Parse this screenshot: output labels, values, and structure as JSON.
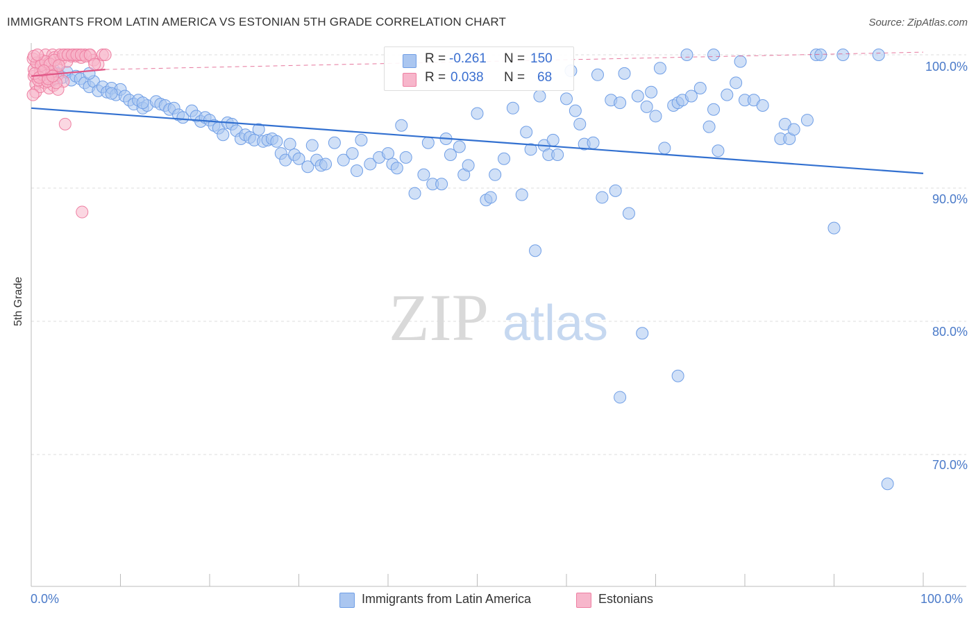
{
  "header": {
    "title": "IMMIGRANTS FROM LATIN AMERICA VS ESTONIAN 5TH GRADE CORRELATION CHART",
    "source": "Source: ZipAtlas.com"
  },
  "watermark": {
    "zip": "ZIP",
    "atlas": "atlas"
  },
  "stats": {
    "rows": [
      {
        "r_label": "R = ",
        "r_value": "-0.261",
        "n_label": "N = ",
        "n_value": "150",
        "color": "#aac6f0"
      },
      {
        "r_label": "R = ",
        "r_value": "0.038",
        "n_label": "N = ",
        "n_value": "68",
        "color": "#f7b6cb"
      }
    ]
  },
  "legend": {
    "items": [
      {
        "label": "Immigrants from Latin America",
        "color": "#aac6f0"
      },
      {
        "label": "Estonians",
        "color": "#f7b6cb"
      }
    ]
  },
  "chart_data": {
    "type": "scatter",
    "title": "IMMIGRANTS FROM LATIN AMERICA VS ESTONIAN 5TH GRADE CORRELATION CHART",
    "xlabel": "",
    "ylabel": "5th Grade",
    "xlim": [
      0,
      100
    ],
    "ylim": [
      60,
      100.5
    ],
    "x_tick_labels": [
      "0.0%",
      "100.0%"
    ],
    "y_ticks": [
      {
        "value": 100,
        "label": "100.0%"
      },
      {
        "value": 90,
        "label": "90.0%"
      },
      {
        "value": 80,
        "label": "80.0%"
      },
      {
        "value": 70,
        "label": "70.0%"
      }
    ],
    "grid": true,
    "legend_position": "bottom",
    "series": [
      {
        "name": "Immigrants from Latin America",
        "color": "#6f9ee6",
        "fill": "#aac6f0",
        "trend": {
          "x": [
            0,
            100
          ],
          "y": [
            96.0,
            91.1
          ],
          "color": "#3270d0"
        },
        "points": [
          [
            1.5,
            98.5
          ],
          [
            2.5,
            98.9
          ],
          [
            3,
            98.6
          ],
          [
            3.5,
            98.3
          ],
          [
            4,
            98.7
          ],
          [
            4.5,
            98.1
          ],
          [
            5,
            98.4
          ],
          [
            5.5,
            98.2
          ],
          [
            6,
            97.9
          ],
          [
            6.5,
            97.6
          ],
          [
            7,
            98.0
          ],
          [
            7.5,
            97.3
          ],
          [
            8,
            97.6
          ],
          [
            8.5,
            97.2
          ],
          [
            9,
            97.5
          ],
          [
            9.5,
            97.0
          ],
          [
            10,
            97.4
          ],
          [
            10.5,
            96.9
          ],
          [
            11,
            96.6
          ],
          [
            11.5,
            96.3
          ],
          [
            12,
            96.6
          ],
          [
            12.5,
            96.0
          ],
          [
            13,
            96.2
          ],
          [
            14,
            96.5
          ],
          [
            14.5,
            96.3
          ],
          [
            15,
            96.2
          ],
          [
            15.5,
            95.9
          ],
          [
            16,
            96.0
          ],
          [
            16.5,
            95.5
          ],
          [
            17,
            95.3
          ],
          [
            18,
            95.8
          ],
          [
            18.5,
            95.4
          ],
          [
            19,
            95.0
          ],
          [
            19.5,
            95.3
          ],
          [
            20,
            95.1
          ],
          [
            20.5,
            94.7
          ],
          [
            21,
            94.5
          ],
          [
            21.5,
            94.0
          ],
          [
            22,
            94.9
          ],
          [
            22.5,
            94.8
          ],
          [
            23,
            94.3
          ],
          [
            23.5,
            93.7
          ],
          [
            24,
            94.0
          ],
          [
            24.5,
            93.8
          ],
          [
            25,
            93.6
          ],
          [
            25.5,
            94.4
          ],
          [
            26,
            93.5
          ],
          [
            26.5,
            93.6
          ],
          [
            27,
            93.7
          ],
          [
            27.5,
            93.5
          ],
          [
            28,
            92.6
          ],
          [
            28.5,
            92.1
          ],
          [
            29,
            93.3
          ],
          [
            29.5,
            92.5
          ],
          [
            30,
            92.2
          ],
          [
            31,
            91.6
          ],
          [
            31.5,
            93.2
          ],
          [
            32,
            92.1
          ],
          [
            32.5,
            91.7
          ],
          [
            33,
            91.8
          ],
          [
            34,
            93.4
          ],
          [
            35,
            92.1
          ],
          [
            36,
            92.6
          ],
          [
            36.5,
            91.3
          ],
          [
            37,
            93.6
          ],
          [
            38,
            91.8
          ],
          [
            39,
            92.3
          ],
          [
            40,
            92.6
          ],
          [
            40.5,
            91.8
          ],
          [
            41,
            91.5
          ],
          [
            41.5,
            94.7
          ],
          [
            42,
            92.3
          ],
          [
            43,
            89.6
          ],
          [
            44,
            91.0
          ],
          [
            44.5,
            93.4
          ],
          [
            45,
            90.3
          ],
          [
            46,
            90.3
          ],
          [
            46.5,
            93.7
          ],
          [
            47,
            92.5
          ],
          [
            48,
            93.1
          ],
          [
            48.5,
            91.0
          ],
          [
            49,
            91.7
          ],
          [
            50,
            95.6
          ],
          [
            51,
            89.1
          ],
          [
            51.5,
            89.3
          ],
          [
            52,
            91.0
          ],
          [
            53,
            92.2
          ],
          [
            54,
            96.0
          ],
          [
            55,
            89.5
          ],
          [
            55.5,
            94.2
          ],
          [
            56,
            92.9
          ],
          [
            57,
            96.9
          ],
          [
            57.5,
            93.2
          ],
          [
            58,
            92.5
          ],
          [
            58.5,
            93.6
          ],
          [
            59,
            92.5
          ],
          [
            60,
            96.7
          ],
          [
            61,
            95.8
          ],
          [
            61.5,
            94.8
          ],
          [
            62,
            93.3
          ],
          [
            63,
            93.4
          ],
          [
            64,
            89.3
          ],
          [
            65,
            96.6
          ],
          [
            65.5,
            89.8
          ],
          [
            66,
            96.4
          ],
          [
            67,
            88.1
          ],
          [
            68,
            96.9
          ],
          [
            69,
            96.1
          ],
          [
            69.5,
            97.2
          ],
          [
            70,
            95.4
          ],
          [
            71,
            93.0
          ],
          [
            72,
            96.2
          ],
          [
            72.5,
            96.4
          ],
          [
            73,
            96.6
          ],
          [
            74,
            96.9
          ],
          [
            75,
            97.5
          ],
          [
            76,
            94.6
          ],
          [
            76.5,
            95.9
          ],
          [
            77,
            92.8
          ],
          [
            78,
            97.0
          ],
          [
            79,
            97.9
          ],
          [
            80,
            96.6
          ],
          [
            81,
            96.6
          ],
          [
            82,
            96.2
          ],
          [
            84,
            93.7
          ],
          [
            84.5,
            94.8
          ],
          [
            85,
            93.7
          ],
          [
            85.5,
            94.4
          ],
          [
            87,
            95.1
          ],
          [
            79.5,
            99.5
          ],
          [
            60.5,
            98.8
          ],
          [
            63.5,
            98.5
          ],
          [
            66.5,
            98.6
          ],
          [
            70.5,
            99.0
          ],
          [
            73.5,
            100.0
          ],
          [
            76.5,
            100.0
          ],
          [
            88,
            100.0
          ],
          [
            88.5,
            100.0
          ],
          [
            91,
            100.0
          ],
          [
            95,
            100.0
          ],
          [
            90,
            87.0
          ],
          [
            66,
            74.3
          ],
          [
            68.5,
            79.1
          ],
          [
            72.5,
            75.9
          ],
          [
            56.5,
            85.3
          ],
          [
            96,
            67.8
          ],
          [
            2.5,
            98.1
          ],
          [
            6.5,
            98.6
          ],
          [
            9,
            97.1
          ],
          [
            12.5,
            96.4
          ]
        ]
      },
      {
        "name": "Estonians",
        "color": "#ee7fa2",
        "fill": "#f7b6cb",
        "trend": {
          "x": [
            0,
            8.3
          ],
          "y": [
            98.4,
            98.9
          ],
          "color": "#e05585"
        },
        "trend_extension": {
          "x": [
            8.3,
            100
          ],
          "y": [
            98.9,
            100.2
          ]
        },
        "points": [
          [
            0.3,
            98.4
          ],
          [
            0.5,
            97.8
          ],
          [
            0.8,
            99.3
          ],
          [
            1,
            98.8
          ],
          [
            1.2,
            99.6
          ],
          [
            1.4,
            99.0
          ],
          [
            1.6,
            100.0
          ],
          [
            1.8,
            98.6
          ],
          [
            2.0,
            99.4
          ],
          [
            2.2,
            98.2
          ],
          [
            2.4,
            100.0
          ],
          [
            2.6,
            99.8
          ],
          [
            2.8,
            99.1
          ],
          [
            3.0,
            98.5
          ],
          [
            3.2,
            100.0
          ],
          [
            3.4,
            99.7
          ],
          [
            3.6,
            98.0
          ],
          [
            3.8,
            100.0
          ],
          [
            4.0,
            99.5
          ],
          [
            4.2,
            100.0
          ],
          [
            4.5,
            99.9
          ],
          [
            4.8,
            100.0
          ],
          [
            5.0,
            99.9
          ],
          [
            5.3,
            100.0
          ],
          [
            5.6,
            99.8
          ],
          [
            6.0,
            100.0
          ],
          [
            6.5,
            100.0
          ],
          [
            7.0,
            99.6
          ],
          [
            7.5,
            99.3
          ],
          [
            8.0,
            100.0
          ],
          [
            8.3,
            100.0
          ],
          [
            0.5,
            97.2
          ],
          [
            1.0,
            97.6
          ],
          [
            1.5,
            97.9
          ],
          [
            2.0,
            97.5
          ],
          [
            2.5,
            97.7
          ],
          [
            3.0,
            97.4
          ],
          [
            0.3,
            98.9
          ],
          [
            0.8,
            98.1
          ],
          [
            1.3,
            98.5
          ],
          [
            1.8,
            98.0
          ],
          [
            2.3,
            98.7
          ],
          [
            2.8,
            97.9
          ],
          [
            0.2,
            99.7
          ],
          [
            0.6,
            99.4
          ],
          [
            1.1,
            99.2
          ],
          [
            1.6,
            99.5
          ],
          [
            2.1,
            99.3
          ],
          [
            2.6,
            99.6
          ],
          [
            3.1,
            99.2
          ],
          [
            3.6,
            100.0
          ],
          [
            4.1,
            100.0
          ],
          [
            4.6,
            100.0
          ],
          [
            5.1,
            100.0
          ],
          [
            5.6,
            100.0
          ],
          [
            6.1,
            99.9
          ],
          [
            6.6,
            100.0
          ],
          [
            7.1,
            99.3
          ],
          [
            0.4,
            98.6
          ],
          [
            0.9,
            98.3
          ],
          [
            1.4,
            98.8
          ],
          [
            1.9,
            98.2
          ],
          [
            2.4,
            98.4
          ],
          [
            0.3,
            99.9
          ],
          [
            0.7,
            100.0
          ],
          [
            3.8,
            94.8
          ],
          [
            5.7,
            88.2
          ],
          [
            0.2,
            97.0
          ]
        ]
      }
    ]
  }
}
